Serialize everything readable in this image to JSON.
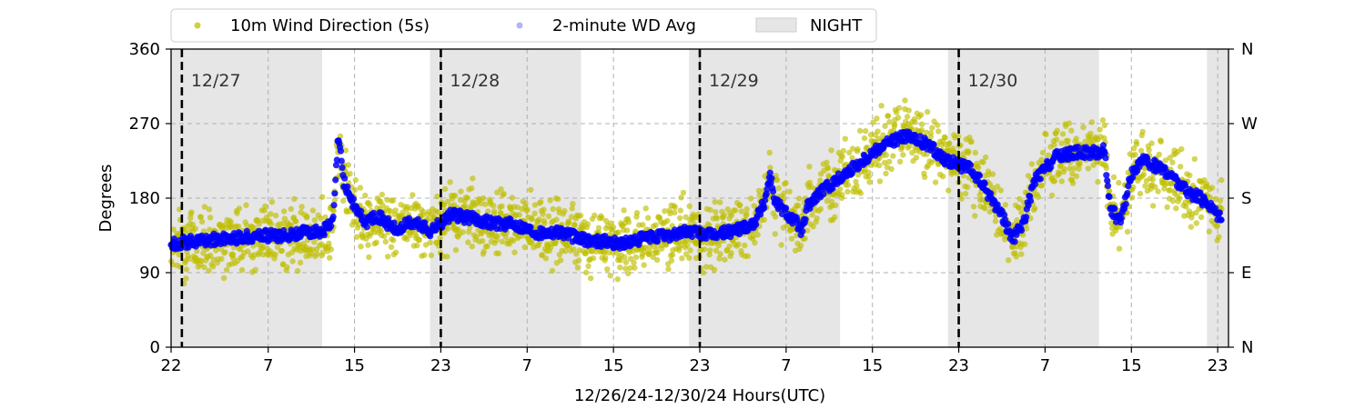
{
  "chart_data": {
    "type": "scatter",
    "xlabel": "12/26/24-12/30/24  Hours(UTC)",
    "ylabel": "Degrees",
    "xlim": [
      0,
      98
    ],
    "ylim": [
      0,
      360
    ],
    "x_ticks": [
      {
        "pos": 0,
        "label": "22"
      },
      {
        "pos": 9,
        "label": "7"
      },
      {
        "pos": 17,
        "label": "15"
      },
      {
        "pos": 25,
        "label": "23"
      },
      {
        "pos": 33,
        "label": "7"
      },
      {
        "pos": 41,
        "label": "15"
      },
      {
        "pos": 49,
        "label": "23"
      },
      {
        "pos": 57,
        "label": "7"
      },
      {
        "pos": 65,
        "label": "15"
      },
      {
        "pos": 73,
        "label": "23"
      },
      {
        "pos": 81,
        "label": "7"
      },
      {
        "pos": 89,
        "label": "15"
      },
      {
        "pos": 97,
        "label": "23"
      }
    ],
    "y_ticks": [
      0,
      90,
      180,
      270,
      360
    ],
    "right_ticks": [
      {
        "value": 0,
        "label": "N"
      },
      {
        "value": 90,
        "label": "E"
      },
      {
        "value": 180,
        "label": "S"
      },
      {
        "value": 270,
        "label": "W"
      },
      {
        "value": 360,
        "label": "N"
      }
    ],
    "grid": true,
    "legend_position": "top, above plot",
    "legend": [
      {
        "label": "10m Wind Direction (5s)",
        "color": "#bfbf00"
      },
      {
        "label": "2-minute WD Avg",
        "color": "#0000ff"
      },
      {
        "label": "NIGHT",
        "color": "#e6e6e6"
      }
    ],
    "night_intervals": [
      [
        0,
        14
      ],
      [
        24,
        38
      ],
      [
        48,
        62
      ],
      [
        72,
        86
      ],
      [
        96,
        98
      ]
    ],
    "day_markers": [
      {
        "x": 1,
        "label": "12/27"
      },
      {
        "x": 25,
        "label": "12/28"
      },
      {
        "x": 49,
        "label": "12/29"
      },
      {
        "x": 73,
        "label": "12/30"
      }
    ],
    "series": [
      {
        "name": "10m Wind Direction (5s)",
        "color": "#bfbf00",
        "spread": 32,
        "points": [
          [
            0,
            125
          ],
          [
            2,
            128
          ],
          [
            4,
            130
          ],
          [
            6,
            132
          ],
          [
            8,
            135
          ],
          [
            10,
            134
          ],
          [
            12,
            138
          ],
          [
            14,
            140
          ],
          [
            15,
            150
          ],
          [
            15.5,
            255
          ],
          [
            16,
            200
          ],
          [
            17,
            170
          ],
          [
            18,
            150
          ],
          [
            19,
            160
          ],
          [
            20,
            150
          ],
          [
            21,
            140
          ],
          [
            22,
            150
          ],
          [
            23,
            148
          ],
          [
            24,
            140
          ],
          [
            25,
            150
          ],
          [
            26,
            160
          ],
          [
            28,
            155
          ],
          [
            30,
            150
          ],
          [
            32,
            148
          ],
          [
            34,
            138
          ],
          [
            36,
            140
          ],
          [
            38,
            130
          ],
          [
            40,
            128
          ],
          [
            42,
            125
          ],
          [
            44,
            132
          ],
          [
            46,
            135
          ],
          [
            48,
            140
          ],
          [
            50,
            135
          ],
          [
            52,
            140
          ],
          [
            54,
            150
          ],
          [
            55,
            175
          ],
          [
            55.5,
            210
          ],
          [
            56,
            175
          ],
          [
            58,
            150
          ],
          [
            58.5,
            140
          ],
          [
            59,
            170
          ],
          [
            60,
            185
          ],
          [
            62,
            205
          ],
          [
            64,
            225
          ],
          [
            66,
            245
          ],
          [
            68,
            255
          ],
          [
            70,
            245
          ],
          [
            72,
            225
          ],
          [
            74,
            215
          ],
          [
            75,
            200
          ],
          [
            76,
            180
          ],
          [
            77,
            160
          ],
          [
            78,
            130
          ],
          [
            79,
            150
          ],
          [
            80,
            200
          ],
          [
            81,
            215
          ],
          [
            82,
            230
          ],
          [
            84,
            235
          ],
          [
            86,
            235
          ],
          [
            86.5,
            240
          ],
          [
            87,
            170
          ],
          [
            88,
            150
          ],
          [
            89,
            210
          ],
          [
            90,
            225
          ],
          [
            92,
            215
          ],
          [
            94,
            190
          ],
          [
            96,
            175
          ],
          [
            97,
            160
          ]
        ]
      },
      {
        "name": "2-minute WD Avg",
        "color": "#0000ff",
        "points": [
          [
            0,
            125
          ],
          [
            2,
            128
          ],
          [
            4,
            130
          ],
          [
            6,
            132
          ],
          [
            8,
            135
          ],
          [
            10,
            134
          ],
          [
            12,
            138
          ],
          [
            14,
            140
          ],
          [
            15,
            150
          ],
          [
            15.5,
            255
          ],
          [
            16,
            200
          ],
          [
            17,
            170
          ],
          [
            18,
            150
          ],
          [
            19,
            160
          ],
          [
            20,
            150
          ],
          [
            21,
            140
          ],
          [
            22,
            150
          ],
          [
            23,
            148
          ],
          [
            24,
            140
          ],
          [
            25,
            150
          ],
          [
            26,
            160
          ],
          [
            28,
            155
          ],
          [
            30,
            150
          ],
          [
            32,
            148
          ],
          [
            34,
            138
          ],
          [
            36,
            140
          ],
          [
            38,
            130
          ],
          [
            40,
            128
          ],
          [
            42,
            125
          ],
          [
            44,
            132
          ],
          [
            46,
            135
          ],
          [
            48,
            140
          ],
          [
            50,
            135
          ],
          [
            52,
            140
          ],
          [
            54,
            150
          ],
          [
            55,
            175
          ],
          [
            55.5,
            210
          ],
          [
            56,
            175
          ],
          [
            58,
            150
          ],
          [
            58.5,
            140
          ],
          [
            59,
            170
          ],
          [
            60,
            185
          ],
          [
            62,
            205
          ],
          [
            64,
            225
          ],
          [
            66,
            245
          ],
          [
            68,
            255
          ],
          [
            70,
            245
          ],
          [
            72,
            225
          ],
          [
            74,
            215
          ],
          [
            75,
            200
          ],
          [
            76,
            180
          ],
          [
            77,
            160
          ],
          [
            78,
            130
          ],
          [
            79,
            150
          ],
          [
            80,
            200
          ],
          [
            81,
            215
          ],
          [
            82,
            230
          ],
          [
            84,
            235
          ],
          [
            86,
            235
          ],
          [
            86.5,
            240
          ],
          [
            87,
            170
          ],
          [
            88,
            150
          ],
          [
            89,
            210
          ],
          [
            90,
            225
          ],
          [
            92,
            215
          ],
          [
            94,
            190
          ],
          [
            96,
            175
          ],
          [
            97,
            160
          ]
        ]
      }
    ]
  }
}
